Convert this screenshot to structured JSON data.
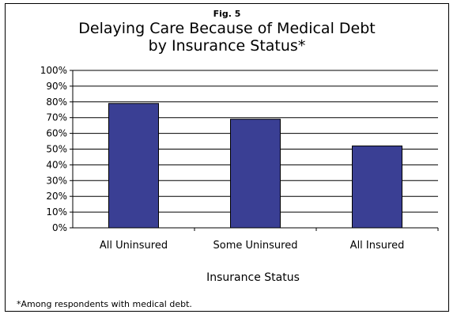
{
  "figure_label": "Fig. 5",
  "chart_data": {
    "type": "bar",
    "title_line1": "Delaying Care Because of Medical Debt",
    "title_line2": "by Insurance Status*",
    "xlabel": "Insurance Status",
    "ylabel": "",
    "categories": [
      "All Uninsured",
      "Some Uninsured",
      "All Insured"
    ],
    "values": [
      79,
      69,
      52
    ],
    "ylim": [
      0,
      100
    ],
    "yticks": [
      "0%",
      "10%",
      "20%",
      "30%",
      "40%",
      "50%",
      "60%",
      "70%",
      "80%",
      "90%",
      "100%"
    ],
    "bar_color": "#3a3f94",
    "grid": true,
    "legend": "none"
  },
  "footnote": "*Among respondents with medical debt."
}
